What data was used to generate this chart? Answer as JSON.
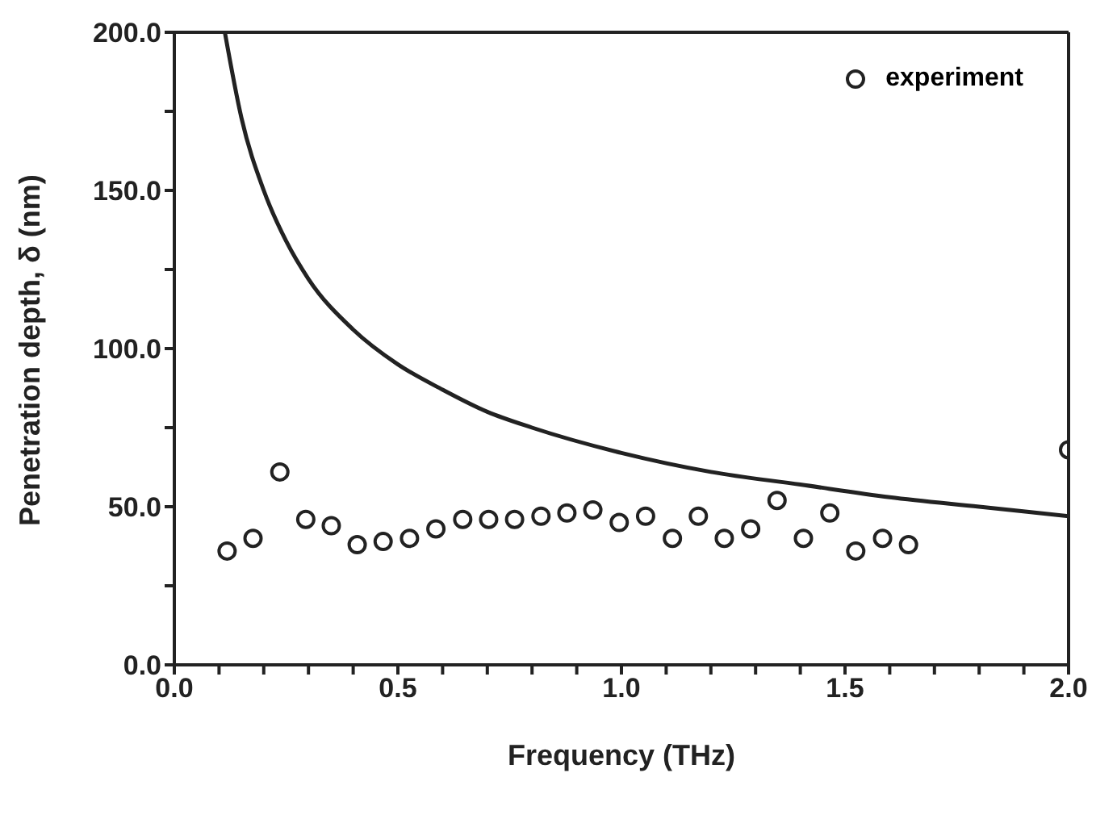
{
  "chart_data": {
    "type": "scatter",
    "xlabel": "Frequency (THz)",
    "ylabel": "Penetration depth, δ (nm)",
    "xlim": [
      0,
      2
    ],
    "ylim": [
      0,
      200
    ],
    "xticks": [
      {
        "value": 0,
        "label": "0.0"
      },
      {
        "value": 0.1,
        "label": null
      },
      {
        "value": 0.2,
        "label": null
      },
      {
        "value": 0.3,
        "label": null
      },
      {
        "value": 0.4,
        "label": null
      },
      {
        "value": 0.5,
        "label": "0.5"
      },
      {
        "value": 0.6,
        "label": null
      },
      {
        "value": 0.7,
        "label": null
      },
      {
        "value": 0.8,
        "label": null
      },
      {
        "value": 0.9,
        "label": null
      },
      {
        "value": 1,
        "label": "1.0"
      },
      {
        "value": 1.1,
        "label": null
      },
      {
        "value": 1.2,
        "label": null
      },
      {
        "value": 1.3,
        "label": null
      },
      {
        "value": 1.4,
        "label": null
      },
      {
        "value": 1.5,
        "label": "1.5"
      },
      {
        "value": 1.6,
        "label": null
      },
      {
        "value": 1.7,
        "label": null
      },
      {
        "value": 1.8,
        "label": null
      },
      {
        "value": 1.9,
        "label": null
      },
      {
        "value": 2,
        "label": "2.0"
      }
    ],
    "yticks": [
      {
        "value": 0,
        "label": "0.0"
      },
      {
        "value": 25,
        "label": null
      },
      {
        "value": 50,
        "label": "50.0"
      },
      {
        "value": 75,
        "label": null
      },
      {
        "value": 100,
        "label": "100.0"
      },
      {
        "value": 125,
        "label": null
      },
      {
        "value": 150,
        "label": "150.0"
      },
      {
        "value": 175,
        "label": null
      },
      {
        "value": 200,
        "label": "200.0"
      }
    ],
    "legend": "top right",
    "series": [
      {
        "type": "line",
        "color": "#222222",
        "marker": "none",
        "line_style": "solid",
        "x": [
          0.113,
          0.15,
          0.2,
          0.25,
          0.3,
          0.4,
          0.5,
          0.6,
          0.7,
          0.8,
          1.0,
          1.2,
          1.4,
          1.6,
          1.8,
          2.0
        ],
        "values": [
          200,
          173,
          150,
          134,
          122,
          106,
          95,
          87,
          80,
          75,
          67,
          61,
          57,
          53,
          50,
          47
        ]
      },
      {
        "name": "experiment",
        "color": "#222222",
        "marker": "circle",
        "x": [
          0.118,
          0.176,
          0.236,
          0.294,
          0.351,
          0.409,
          0.467,
          0.526,
          0.585,
          0.645,
          0.703,
          0.761,
          0.82,
          0.878,
          0.936,
          0.995,
          1.054,
          1.114,
          1.172,
          1.23,
          1.289,
          1.348,
          1.407,
          1.466,
          1.524,
          1.584,
          1.642,
          2.0
        ],
        "values": [
          36,
          40,
          61,
          46,
          44,
          38,
          39,
          40,
          43,
          46,
          46,
          46,
          47,
          48,
          49,
          45,
          47,
          40,
          47,
          40,
          43,
          52,
          40,
          48,
          36,
          40,
          38,
          68
        ]
      }
    ]
  }
}
